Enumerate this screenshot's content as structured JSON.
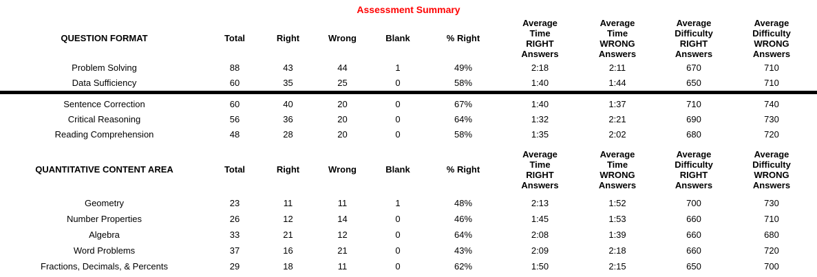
{
  "page": {
    "title": "Assessment Summary",
    "title_color": "#FF0000",
    "divider_color": "#000000",
    "text_color": "#000000"
  },
  "table": {
    "column_keys": [
      "total",
      "right",
      "wrong",
      "blank",
      "pct-right",
      "avg-time-right",
      "avg-time-wrong",
      "avg-difficulty-right",
      "avg-difficulty-wrong"
    ],
    "sections": [
      {
        "category_header": "QUESTION FORMAT",
        "column_headers": [
          "Total",
          "Right",
          "Wrong",
          "Blank",
          "% Right",
          "Average\nTime\nRIGHT\nAnswers",
          "Average\nTime\nWRONG\nAnswers",
          "Average\nDifficulty\nRIGHT\nAnswers",
          "Average\nDifficulty\nWRONG\nAnswers"
        ],
        "divider_after_group": 0,
        "row_groups": [
          [
            {
              "label": "Problem Solving",
              "values": [
                "88",
                "43",
                "44",
                "1",
                "49%",
                "2:18",
                "2:11",
                "670",
                "710"
              ]
            },
            {
              "label": "Data Sufficiency",
              "values": [
                "60",
                "35",
                "25",
                "0",
                "58%",
                "1:40",
                "1:44",
                "650",
                "710"
              ]
            }
          ],
          [
            {
              "label": "Sentence Correction",
              "values": [
                "60",
                "40",
                "20",
                "0",
                "67%",
                "1:40",
                "1:37",
                "710",
                "740"
              ]
            },
            {
              "label": "Critical Reasoning",
              "values": [
                "56",
                "36",
                "20",
                "0",
                "64%",
                "1:32",
                "2:21",
                "690",
                "730"
              ]
            },
            {
              "label": "Reading Comprehension",
              "values": [
                "48",
                "28",
                "20",
                "0",
                "58%",
                "1:35",
                "2:02",
                "680",
                "720"
              ]
            }
          ]
        ]
      },
      {
        "category_header": "QUANTITATIVE CONTENT AREA",
        "column_headers": [
          "Total",
          "Right",
          "Wrong",
          "Blank",
          "% Right",
          "Average\nTime\nRIGHT\nAnswers",
          "Average\nTime\nWRONG\nAnswers",
          "Average\nDifficulty\nRIGHT\nAnswers",
          "Average\nDifficulty\nWRONG\nAnswers"
        ],
        "divider_after_group": null,
        "row_groups": [
          [
            {
              "label": "Geometry",
              "values": [
                "23",
                "11",
                "11",
                "1",
                "48%",
                "2:13",
                "1:52",
                "700",
                "730"
              ]
            },
            {
              "label": "Number Properties",
              "values": [
                "26",
                "12",
                "14",
                "0",
                "46%",
                "1:45",
                "1:53",
                "660",
                "710"
              ]
            },
            {
              "label": "Algebra",
              "values": [
                "33",
                "21",
                "12",
                "0",
                "64%",
                "2:08",
                "1:39",
                "660",
                "680"
              ]
            },
            {
              "label": "Word Problems",
              "values": [
                "37",
                "16",
                "21",
                "0",
                "43%",
                "2:09",
                "2:18",
                "660",
                "720"
              ]
            },
            {
              "label": "Fractions, Decimals, & Percents",
              "values": [
                "29",
                "18",
                "11",
                "0",
                "62%",
                "1:50",
                "2:15",
                "650",
                "700"
              ]
            }
          ]
        ]
      }
    ]
  }
}
